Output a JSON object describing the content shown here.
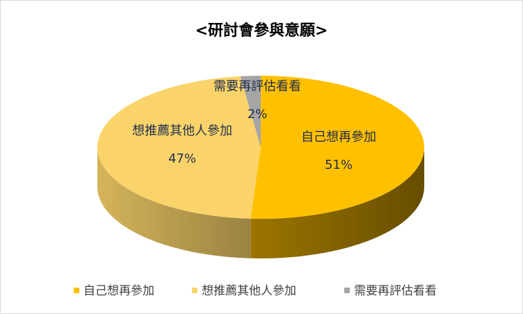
{
  "chart_data": {
    "type": "pie3d",
    "title": "<研討會參與意願>",
    "categories": [
      "自己想再參加",
      "想推薦其他人參加",
      "需要再評估看看"
    ],
    "values": [
      51,
      47,
      2
    ],
    "value_labels": [
      "51%",
      "47%",
      "2%"
    ],
    "colors": [
      "#FFC000",
      "#FAD46A",
      "#A5A5A5"
    ],
    "legend": "bottom"
  }
}
